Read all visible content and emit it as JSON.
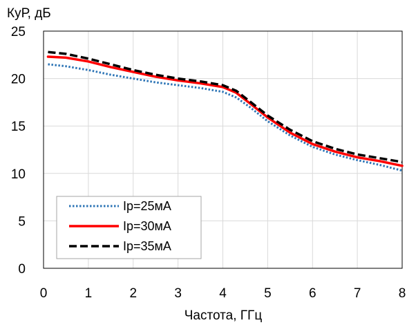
{
  "chart_data": {
    "type": "line",
    "title": "",
    "ylabel": "КуР, дБ",
    "xlabel": "Частота, ГГц",
    "xlim": [
      0,
      8
    ],
    "ylim": [
      0,
      25
    ],
    "grid": true,
    "legend_position": "bottom-left",
    "x_ticks": [
      "0",
      "1",
      "2",
      "3",
      "4",
      "5",
      "6",
      "7",
      "8"
    ],
    "y_ticks": [
      "0",
      "5",
      "10",
      "15",
      "20",
      "25"
    ],
    "series": [
      {
        "name": "Ip=25мА",
        "color": "#2e75b6",
        "style": "dotted",
        "x": [
          0.1,
          0.5,
          1,
          1.5,
          2,
          2.5,
          3,
          3.5,
          4,
          4.3,
          4.6,
          5,
          5.5,
          6,
          6.5,
          7,
          7.5,
          8
        ],
        "y": [
          21.5,
          21.3,
          20.9,
          20.4,
          20.0,
          19.6,
          19.3,
          19.0,
          18.6,
          18.0,
          17.0,
          15.5,
          14.0,
          12.8,
          12.0,
          11.4,
          10.9,
          10.3
        ]
      },
      {
        "name": "Ip=30мА",
        "color": "#ff0000",
        "style": "solid",
        "x": [
          0.1,
          0.5,
          1,
          1.5,
          2,
          2.5,
          3,
          3.5,
          4,
          4.3,
          4.6,
          5,
          5.5,
          6,
          6.5,
          7,
          7.5,
          8
        ],
        "y": [
          22.3,
          22.2,
          21.8,
          21.2,
          20.7,
          20.2,
          19.8,
          19.5,
          19.1,
          18.5,
          17.4,
          15.9,
          14.3,
          13.1,
          12.3,
          11.7,
          11.3,
          10.8
        ]
      },
      {
        "name": "Ip=35мА",
        "color": "#000000",
        "style": "dashed",
        "x": [
          0.1,
          0.5,
          1,
          1.5,
          2,
          2.5,
          3,
          3.5,
          4,
          4.3,
          4.6,
          5,
          5.5,
          6,
          6.5,
          7,
          7.5,
          8
        ],
        "y": [
          22.8,
          22.6,
          22.1,
          21.5,
          20.9,
          20.4,
          20.0,
          19.7,
          19.3,
          18.7,
          17.6,
          16.1,
          14.6,
          13.4,
          12.6,
          12.0,
          11.6,
          11.2
        ]
      }
    ]
  }
}
